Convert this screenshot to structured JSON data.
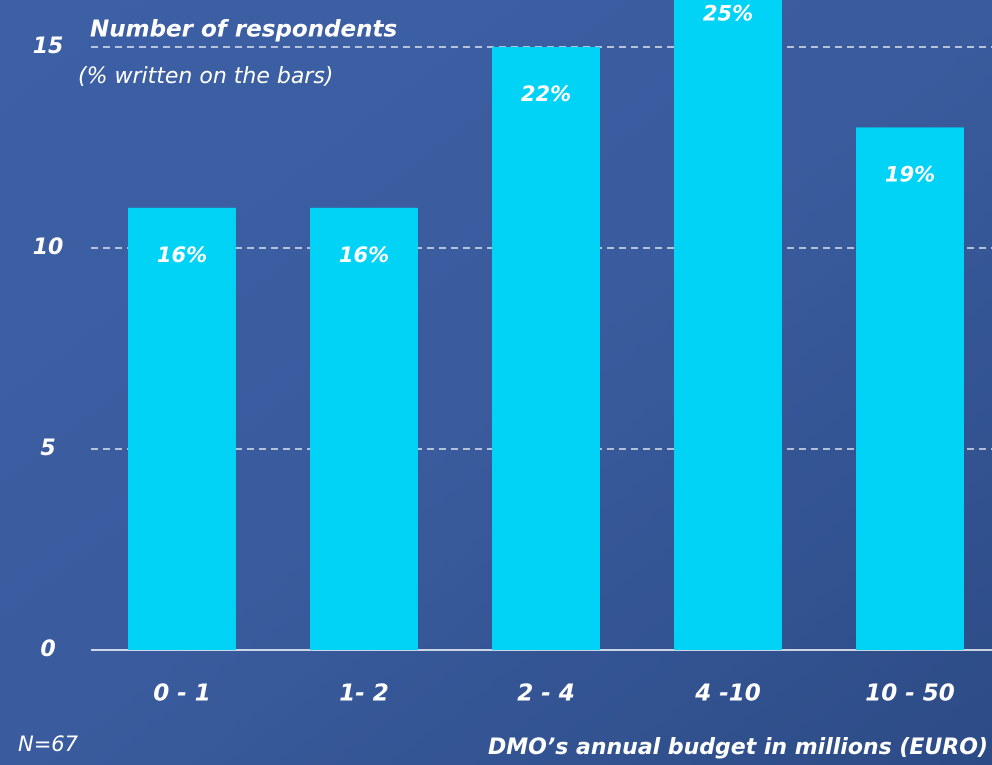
{
  "chart_data": {
    "type": "bar",
    "title": "Number of  respondents",
    "subtitle": "(% written on the bars)",
    "x_label": "DMO’s annual budget in millions (EURO)",
    "note": "N=67",
    "categories": [
      "0 - 1",
      "1- 2",
      "2 - 4",
      "4 -10",
      "10 - 50"
    ],
    "values": [
      11,
      11,
      15,
      17,
      13
    ],
    "value_labels": [
      "16%",
      "16%",
      "22%",
      "25%",
      "19%"
    ],
    "color": "#00d3f5",
    "ylim": [
      0,
      15
    ],
    "yticks": [
      0,
      5,
      10,
      15
    ],
    "grid": true
  }
}
